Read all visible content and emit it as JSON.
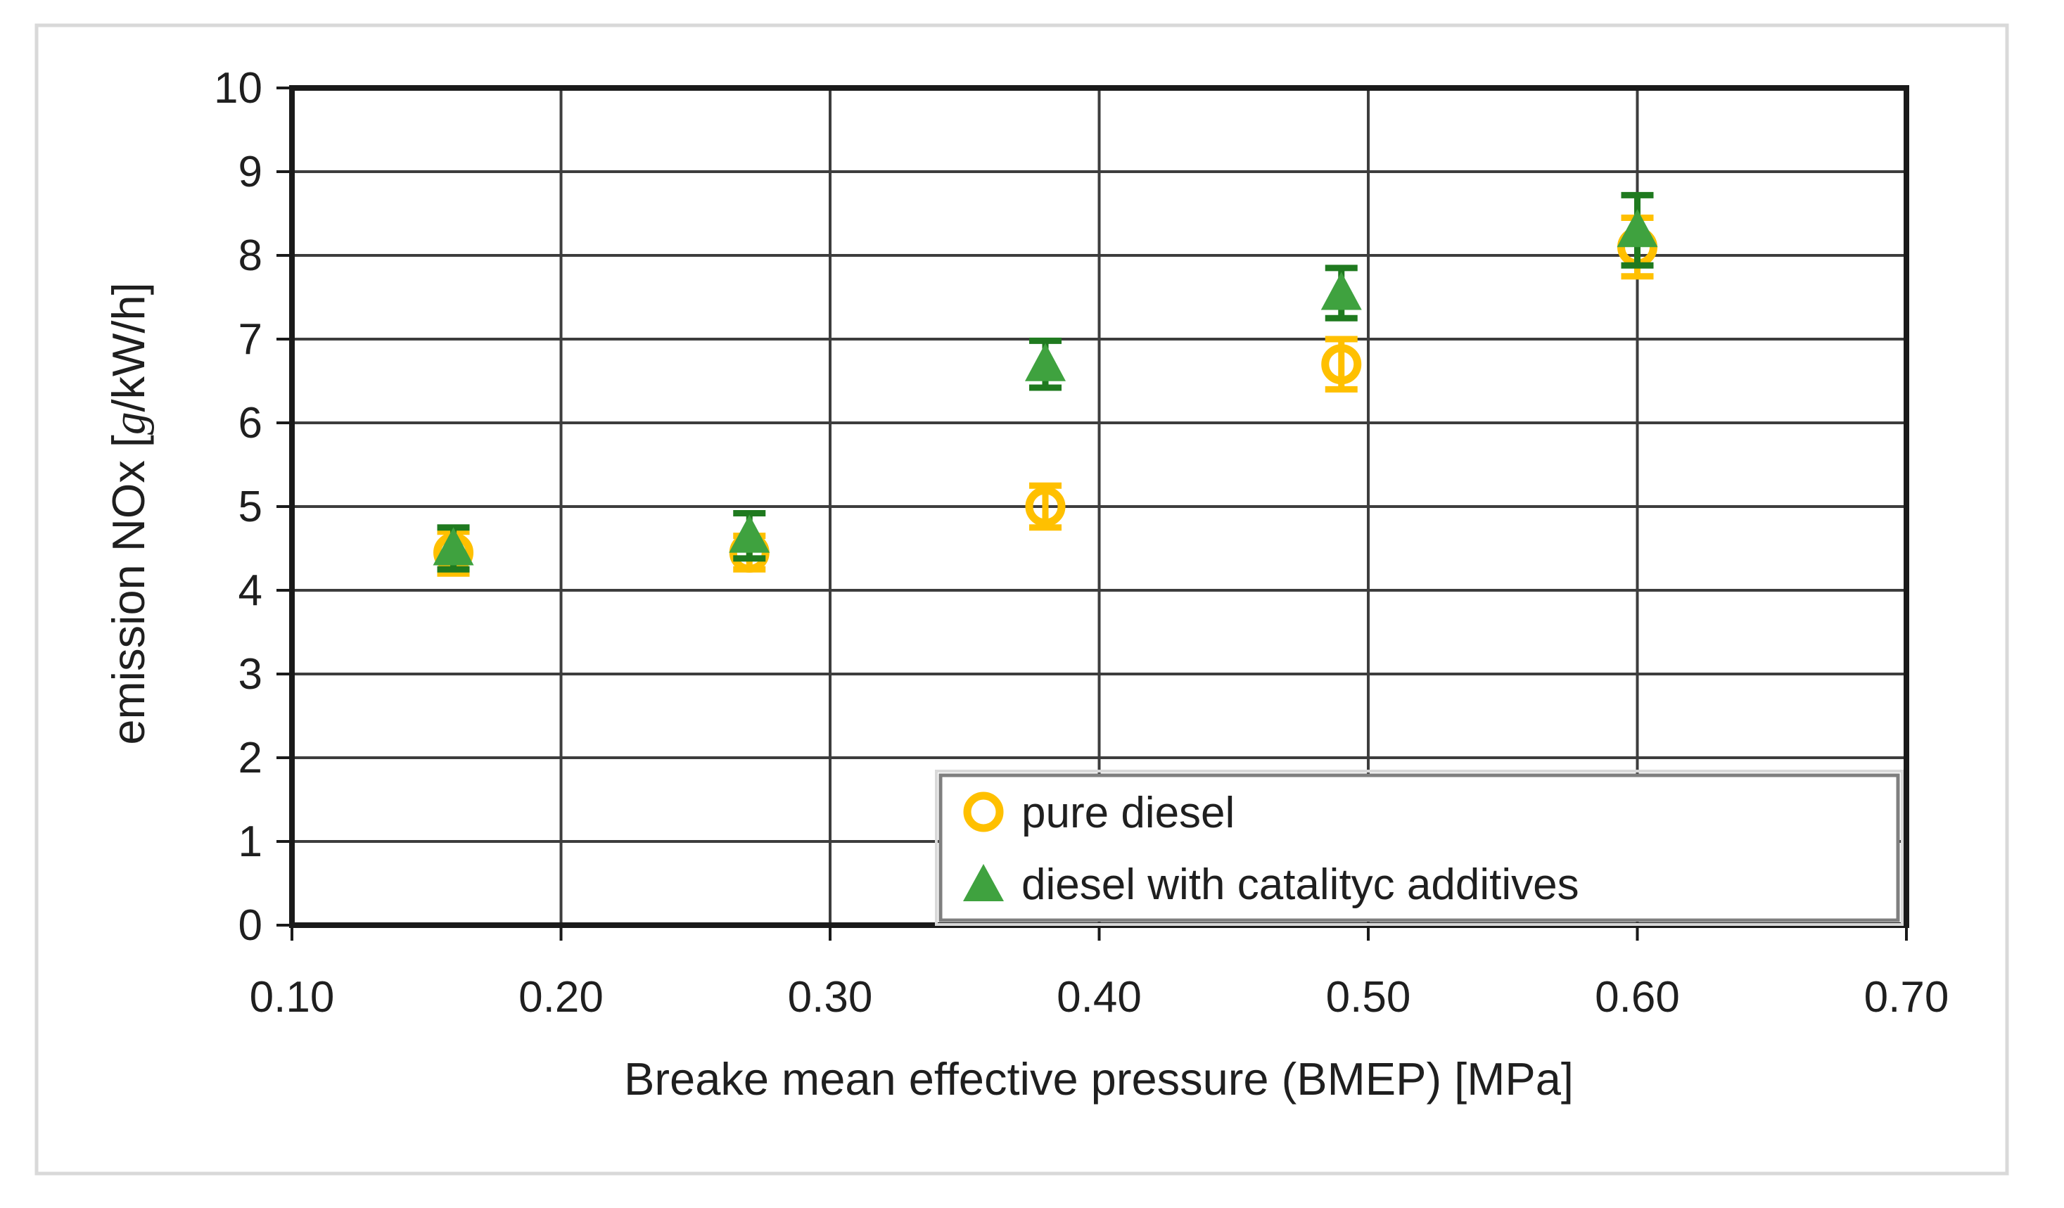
{
  "chart_data": {
    "type": "scatter",
    "title": "",
    "xlabel": "Breake mean effective pressure (BMEP) [MPa]",
    "ylabel": "emission NOx [g/kW/h]",
    "ylabel_parts": {
      "prefix": "emission NOx [",
      "italic_unit": "g",
      "suffix": "/kW/h]"
    },
    "xlim": [
      0.1,
      0.7
    ],
    "ylim": [
      0,
      10
    ],
    "x_tick_labels": [
      "0.10",
      "0.20",
      "0.30",
      "0.40",
      "0.50",
      "0.60",
      "0.70"
    ],
    "x_tick_values": [
      0.1,
      0.2,
      0.3,
      0.4,
      0.5,
      0.6,
      0.7
    ],
    "y_tick_labels": [
      "0",
      "1",
      "2",
      "3",
      "4",
      "5",
      "6",
      "7",
      "8",
      "9",
      "10"
    ],
    "y_tick_values": [
      0,
      1,
      2,
      3,
      4,
      5,
      6,
      7,
      8,
      9,
      10
    ],
    "grid": "both",
    "legend": {
      "position": "inside-bottom-right",
      "items": [
        "pure diesel",
        "diesel with catalityc additives"
      ]
    },
    "series": [
      {
        "name": "pure diesel",
        "marker": "open-circle",
        "color": "#FFC000",
        "error_color": "#FFC000",
        "x": [
          0.16,
          0.27,
          0.38,
          0.49,
          0.6
        ],
        "y": [
          4.45,
          4.45,
          5.0,
          6.7,
          8.1
        ],
        "y_err": [
          0.25,
          0.2,
          0.25,
          0.3,
          0.35
        ]
      },
      {
        "name": "diesel with catalityc additives",
        "marker": "filled-triangle",
        "color": "#3FA23F",
        "error_color": "#1F7A1F",
        "x": [
          0.16,
          0.27,
          0.38,
          0.49,
          0.6
        ],
        "y": [
          4.5,
          4.65,
          6.7,
          7.55,
          8.3
        ],
        "y_err": [
          0.25,
          0.27,
          0.28,
          0.3,
          0.42
        ]
      }
    ],
    "style": {
      "gridline_color": "#3D3D3D",
      "axis_border_color": "#1A1A1A",
      "text_color": "#1F1F1F",
      "legend_border_color": "#7F7F7F",
      "legend_outer_border_color": "#D9D9D9",
      "frame_border_color": "#D9D9D9",
      "background": "#FFFFFF"
    }
  }
}
